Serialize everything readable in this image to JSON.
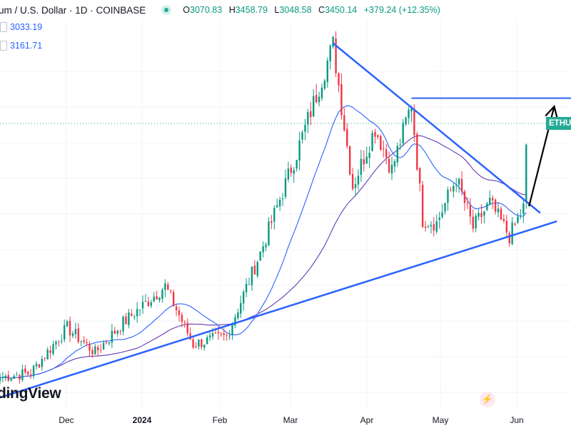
{
  "header": {
    "symbol_title": "um / U.S. Dollar · 1D · COINBASE",
    "open_key": "O",
    "open": "3070.83",
    "high_key": "H",
    "high": "3458.79",
    "low_key": "L",
    "low": "3048.58",
    "close_key": "C",
    "close": "3450.14",
    "change": "+379.24 (+12.35%)"
  },
  "indicators": [
    {
      "value": "3033.19"
    },
    {
      "value": "3161.71"
    }
  ],
  "price_tag": "ETHU",
  "watermark": "dingView",
  "icons": {
    "market_status": "market-open-dot-icon",
    "replay": "lightning-replay-icon"
  },
  "time_axis": [
    {
      "label": "Dec",
      "bold": false
    },
    {
      "label": "2024",
      "bold": true
    },
    {
      "label": "Feb",
      "bold": false
    },
    {
      "label": "Mar",
      "bold": false
    },
    {
      "label": "Apr",
      "bold": false
    },
    {
      "label": "May",
      "bold": false
    },
    {
      "label": "Jun",
      "bold": false
    }
  ],
  "colors": {
    "up": "#089981",
    "down": "#f23645",
    "trendline": "#2962ff",
    "ma_fast": "#2962ff",
    "ma_slow": "#673ab7",
    "arrow": "#000000"
  },
  "chart_data": {
    "type": "candlestick",
    "title": "",
    "xlabel": "",
    "ylabel": "",
    "x_range": [
      "2023-11-14",
      "2024-06-05"
    ],
    "ylim": [
      1850,
      4200
    ],
    "last_price": 3450.14,
    "horizontal_resistance": 3730,
    "anchors": [
      {
        "date": "2023-11-14",
        "close": 2050
      },
      {
        "date": "2023-11-25",
        "close": 2080
      },
      {
        "date": "2023-12-08",
        "close": 2350
      },
      {
        "date": "2023-12-18",
        "close": 2200
      },
      {
        "date": "2023-12-28",
        "close": 2380
      },
      {
        "date": "2024-01-12",
        "close": 2600
      },
      {
        "date": "2024-01-22",
        "close": 2250
      },
      {
        "date": "2024-02-03",
        "close": 2300
      },
      {
        "date": "2024-02-15",
        "close": 2800
      },
      {
        "date": "2024-02-28",
        "close": 3400
      },
      {
        "date": "2024-03-12",
        "close": 4050
      },
      {
        "date": "2024-03-19",
        "close": 3200
      },
      {
        "date": "2024-03-27",
        "close": 3550
      },
      {
        "date": "2024-04-02",
        "close": 3300
      },
      {
        "date": "2024-04-09",
        "close": 3700
      },
      {
        "date": "2024-04-13",
        "close": 3000
      },
      {
        "date": "2024-04-18",
        "close": 2980
      },
      {
        "date": "2024-04-25",
        "close": 3250
      },
      {
        "date": "2024-05-01",
        "close": 2950
      },
      {
        "date": "2024-05-07",
        "close": 3100
      },
      {
        "date": "2024-05-14",
        "close": 2900
      },
      {
        "date": "2024-05-19",
        "close": 3070
      },
      {
        "date": "2024-05-20",
        "close": 3450
      }
    ],
    "trendlines": [
      {
        "name": "",
        "from": {
          "date": "2023-11-14",
          "price": 1930
        },
        "to": {
          "date": "2024-05-31",
          "price": 2990
        }
      },
      {
        "name": "",
        "from": {
          "date": "2024-03-12",
          "price": 4060
        },
        "to": {
          "date": "2024-05-25",
          "price": 3040
        }
      }
    ],
    "projection_arrow": {
      "from": {
        "date": "2024-05-21",
        "price": 3080
      },
      "to": {
        "date": "2024-05-30",
        "price": 3680
      }
    }
  }
}
